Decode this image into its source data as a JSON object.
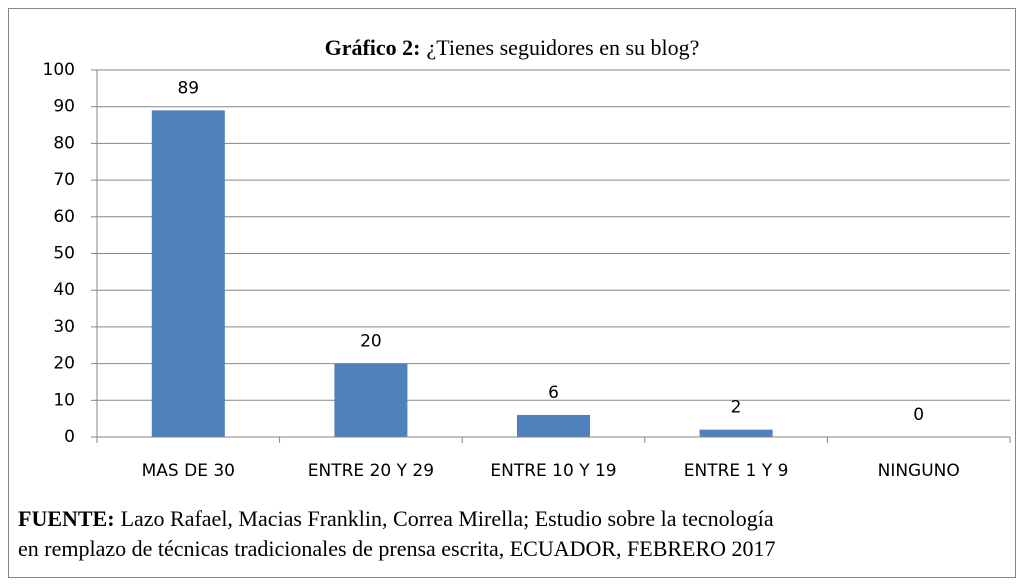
{
  "chart_data": {
    "type": "bar",
    "title_label": "Gráfico 2:",
    "title": "¿Tienes seguidores en su blog?",
    "categories": [
      "MAS DE 30",
      "ENTRE 20 Y 29",
      "ENTRE 10 Y 19",
      "ENTRE 1 Y 9",
      "NINGUNO"
    ],
    "values": [
      89,
      20,
      6,
      2,
      0
    ],
    "color": "#4f81bd",
    "ylim": [
      0,
      100
    ],
    "yticks": [
      0,
      10,
      20,
      30,
      40,
      50,
      60,
      70,
      80,
      90,
      100
    ],
    "grid": true,
    "source_label": "FUENTE:",
    "source_lines": [
      "Lazo Rafael, Macias Franklin, Correa Mirella; Estudio sobre la tecnología",
      "en remplazo de técnicas tradicionales de prensa escrita, ECUADOR, FEBRERO 2017"
    ]
  }
}
